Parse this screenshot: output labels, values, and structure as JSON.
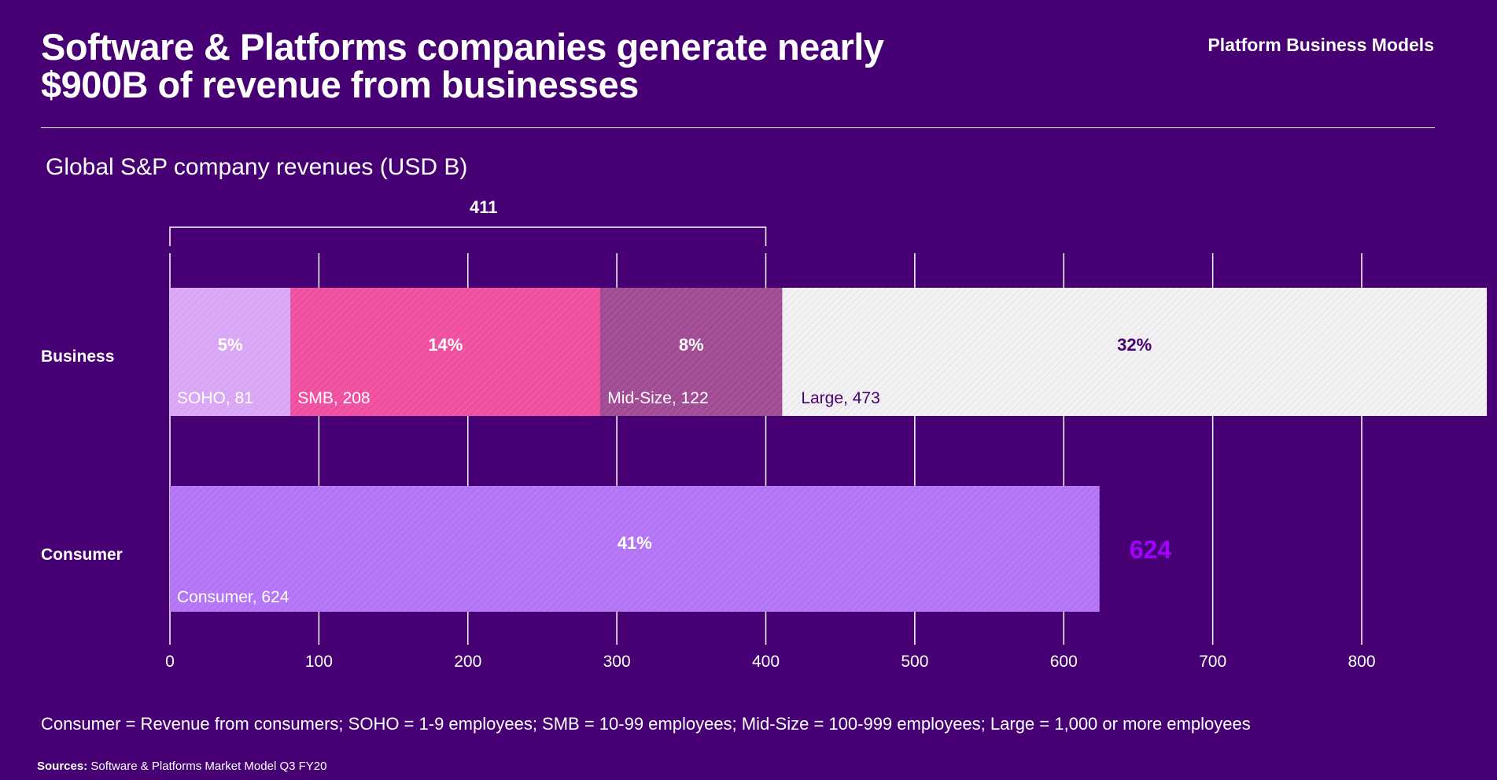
{
  "header": {
    "title_line1": "Software & Platforms companies generate nearly",
    "title_line2": "$900B of revenue from businesses",
    "brand": "Platform Business Models"
  },
  "chart_data": {
    "type": "bar",
    "subtitle": "Global S&P company revenues (USD B)",
    "orientation": "horizontal-stacked",
    "xlim": [
      0,
      800
    ],
    "xticks": [
      0,
      100,
      200,
      300,
      400,
      500,
      600,
      700,
      800
    ],
    "grid": true,
    "bracket": {
      "from": 0,
      "to": 400,
      "label": "411"
    },
    "categories": [
      "Business",
      "Consumer"
    ],
    "bars": [
      {
        "category": "Business",
        "total_label": "884",
        "total_color": "#ffffff",
        "segments": [
          {
            "name": "SOHO",
            "value": 81,
            "pct": "5%",
            "label": "SOHO, 81",
            "color": "#d9a6f5",
            "text_color": "#ffffff"
          },
          {
            "name": "SMB",
            "value": 208,
            "pct": "14%",
            "label": "SMB, 208",
            "color": "#ef4f9e",
            "text_color": "#ffffff"
          },
          {
            "name": "Mid-Size",
            "value": 122,
            "pct": "8%",
            "label": "Mid-Size, 122",
            "color": "#a04a93",
            "text_color": "#ffffff"
          },
          {
            "name": "Large",
            "value": 473,
            "pct": "32%",
            "label": "Large, 473",
            "color": "#f3f2f2",
            "text_color": "#460073"
          }
        ]
      },
      {
        "category": "Consumer",
        "total_label": "624",
        "total_color": "#a100ff",
        "segments": [
          {
            "name": "Consumer",
            "value": 624,
            "pct": "41%",
            "label": "Consumer, 624",
            "color": "#b374f5",
            "text_color": "#ffffff"
          }
        ]
      }
    ]
  },
  "footer": {
    "footnote": "Consumer = Revenue from consumers; SOHO = 1-9 employees; SMB = 10-99 employees; Mid-Size = 100-999 employees; Large = 1,000 or more employees",
    "sources_label": "Sources:",
    "sources_text": " Software & Platforms Market Model Q3 FY20"
  }
}
